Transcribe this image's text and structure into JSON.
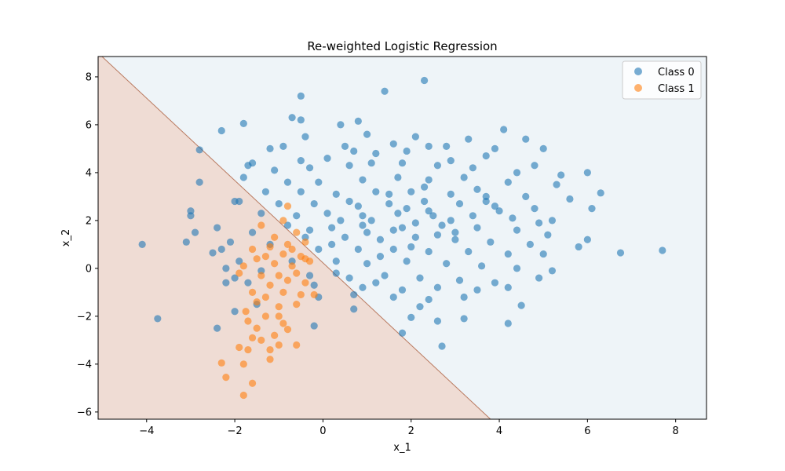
{
  "chart_data": {
    "type": "scatter",
    "title": "Re-weighted Logistic Regression",
    "xlabel": "x_1",
    "ylabel": "x_2",
    "xlim": [
      -5.1,
      8.7
    ],
    "ylim": [
      -6.3,
      8.85
    ],
    "xticks": [
      -4,
      -2,
      0,
      2,
      4,
      6,
      8
    ],
    "yticks": [
      -6,
      -4,
      -2,
      0,
      2,
      4,
      6,
      8
    ],
    "xtick_labels": [
      "−4",
      "−2",
      "0",
      "2",
      "4",
      "6",
      "8"
    ],
    "ytick_labels": [
      "−6",
      "−4",
      "−2",
      "0",
      "2",
      "4",
      "6",
      "8"
    ],
    "grid": false,
    "legend_position": "top-right",
    "decision_boundary": {
      "line": [
        [
          -5.1,
          9.0
        ],
        [
          3.8,
          -6.3
        ]
      ],
      "class0_region_color": "#eef4f8",
      "class1_region_color": "#efdcd4",
      "boundary_color": "#b97a60"
    },
    "series": [
      {
        "name": "Class 0",
        "color": "#1f77b4",
        "points": [
          [
            2.3,
            7.85
          ],
          [
            1.4,
            7.4
          ],
          [
            -0.5,
            7.2
          ],
          [
            -1.8,
            6.05
          ],
          [
            -2.3,
            5.75
          ],
          [
            -0.7,
            6.3
          ],
          [
            -0.5,
            6.2
          ],
          [
            0.8,
            6.15
          ],
          [
            0.4,
            6.0
          ],
          [
            4.1,
            5.8
          ],
          [
            -0.4,
            5.5
          ],
          [
            1.0,
            5.6
          ],
          [
            2.1,
            5.5
          ],
          [
            3.3,
            5.4
          ],
          [
            4.6,
            5.4
          ],
          [
            -1.2,
            5.0
          ],
          [
            -0.9,
            5.1
          ],
          [
            0.5,
            5.1
          ],
          [
            1.6,
            5.2
          ],
          [
            2.8,
            5.1
          ],
          [
            3.9,
            5.0
          ],
          [
            5.0,
            5.0
          ],
          [
            -1.7,
            4.3
          ],
          [
            -1.6,
            4.4
          ],
          [
            -1.1,
            4.1
          ],
          [
            -0.3,
            4.2
          ],
          [
            0.6,
            4.3
          ],
          [
            1.1,
            4.4
          ],
          [
            1.8,
            4.4
          ],
          [
            2.6,
            4.3
          ],
          [
            3.4,
            4.2
          ],
          [
            4.4,
            4.0
          ],
          [
            5.4,
            3.9
          ],
          [
            6.0,
            4.0
          ],
          [
            -1.8,
            3.8
          ],
          [
            -0.8,
            3.6
          ],
          [
            -0.1,
            3.6
          ],
          [
            0.9,
            3.7
          ],
          [
            1.7,
            3.8
          ],
          [
            2.4,
            3.7
          ],
          [
            3.2,
            3.8
          ],
          [
            4.2,
            3.6
          ],
          [
            5.3,
            3.5
          ],
          [
            6.3,
            3.15
          ],
          [
            -1.3,
            3.2
          ],
          [
            -0.5,
            3.2
          ],
          [
            0.3,
            3.1
          ],
          [
            1.2,
            3.2
          ],
          [
            2.0,
            3.2
          ],
          [
            2.9,
            3.1
          ],
          [
            3.7,
            3.0
          ],
          [
            4.6,
            3.0
          ],
          [
            5.6,
            2.9
          ],
          [
            -1.9,
            2.8
          ],
          [
            -1.0,
            2.7
          ],
          [
            -0.2,
            2.7
          ],
          [
            0.6,
            2.8
          ],
          [
            1.5,
            2.7
          ],
          [
            2.3,
            2.8
          ],
          [
            3.1,
            2.7
          ],
          [
            3.9,
            2.6
          ],
          [
            4.8,
            2.5
          ],
          [
            6.1,
            2.5
          ],
          [
            -1.4,
            2.3
          ],
          [
            -0.6,
            2.2
          ],
          [
            0.1,
            2.3
          ],
          [
            0.9,
            2.2
          ],
          [
            1.7,
            2.3
          ],
          [
            2.5,
            2.2
          ],
          [
            3.4,
            2.2
          ],
          [
            4.3,
            2.1
          ],
          [
            5.2,
            2.0
          ],
          [
            -0.8,
            1.8
          ],
          [
            0.2,
            1.7
          ],
          [
            0.9,
            1.8
          ],
          [
            1.8,
            1.7
          ],
          [
            2.7,
            1.8
          ],
          [
            3.5,
            1.7
          ],
          [
            4.4,
            1.6
          ],
          [
            5.1,
            1.4
          ],
          [
            6.0,
            1.2
          ],
          [
            -1.6,
            1.5
          ],
          [
            -0.4,
            1.3
          ],
          [
            0.5,
            1.3
          ],
          [
            1.3,
            1.2
          ],
          [
            2.1,
            1.3
          ],
          [
            3.0,
            1.2
          ],
          [
            3.8,
            1.1
          ],
          [
            4.7,
            1.0
          ],
          [
            5.8,
            0.9
          ],
          [
            -1.2,
            1.0
          ],
          [
            -0.1,
            0.8
          ],
          [
            0.8,
            0.8
          ],
          [
            1.6,
            0.8
          ],
          [
            2.4,
            0.7
          ],
          [
            3.3,
            0.7
          ],
          [
            4.2,
            0.6
          ],
          [
            5.0,
            0.6
          ],
          [
            6.75,
            0.65
          ],
          [
            7.7,
            0.75
          ],
          [
            -2.9,
            1.5
          ],
          [
            -3.1,
            1.1
          ],
          [
            -4.1,
            1.0
          ],
          [
            -2.5,
            0.65
          ],
          [
            -2.3,
            0.8
          ],
          [
            -0.7,
            0.3
          ],
          [
            0.3,
            0.3
          ],
          [
            1.0,
            0.2
          ],
          [
            1.9,
            0.3
          ],
          [
            2.8,
            0.2
          ],
          [
            3.6,
            0.1
          ],
          [
            4.4,
            0.0
          ],
          [
            5.2,
            -0.1
          ],
          [
            -2.2,
            0.0
          ],
          [
            -1.4,
            -0.1
          ],
          [
            -0.3,
            -0.3
          ],
          [
            0.6,
            -0.4
          ],
          [
            1.4,
            -0.3
          ],
          [
            2.2,
            -0.4
          ],
          [
            3.1,
            -0.5
          ],
          [
            3.9,
            -0.6
          ],
          [
            4.9,
            -0.4
          ],
          [
            -1.7,
            -0.6
          ],
          [
            -0.2,
            -0.7
          ],
          [
            0.9,
            -0.8
          ],
          [
            1.8,
            -0.9
          ],
          [
            2.6,
            -0.8
          ],
          [
            3.5,
            -0.9
          ],
          [
            4.2,
            -0.8
          ],
          [
            -0.1,
            -1.2
          ],
          [
            0.7,
            -1.1
          ],
          [
            1.6,
            -1.2
          ],
          [
            2.4,
            -1.3
          ],
          [
            3.2,
            -1.2
          ],
          [
            4.5,
            -1.55
          ],
          [
            0.7,
            -1.7
          ],
          [
            2.2,
            -1.6
          ],
          [
            -3.75,
            -2.1
          ],
          [
            -0.2,
            -2.4
          ],
          [
            2.0,
            -2.05
          ],
          [
            2.6,
            -2.2
          ],
          [
            3.2,
            -2.1
          ],
          [
            4.2,
            -2.3
          ],
          [
            1.8,
            -2.7
          ],
          [
            -2.4,
            -2.5
          ],
          [
            2.7,
            -3.25
          ],
          [
            -2.0,
            -1.8
          ],
          [
            -1.5,
            -1.5
          ],
          [
            0.3,
            -0.2
          ],
          [
            1.2,
            -0.6
          ],
          [
            2.3,
            3.4
          ],
          [
            1.9,
            2.5
          ],
          [
            2.6,
            1.4
          ],
          [
            1.1,
            2.0
          ],
          [
            1.5,
            3.1
          ],
          [
            2.9,
            2.0
          ],
          [
            0.8,
            2.6
          ],
          [
            2.1,
            1.9
          ],
          [
            1.6,
            1.6
          ],
          [
            2.4,
            2.4
          ],
          [
            1.2,
            4.8
          ],
          [
            2.9,
            4.5
          ],
          [
            0.1,
            4.6
          ],
          [
            3.7,
            4.7
          ],
          [
            1.9,
            4.9
          ],
          [
            -0.5,
            4.5
          ],
          [
            4.8,
            4.3
          ],
          [
            2.4,
            5.1
          ],
          [
            0.7,
            4.9
          ],
          [
            3.5,
            3.3
          ],
          [
            0.4,
            2.0
          ],
          [
            -0.3,
            1.6
          ],
          [
            1.0,
            1.5
          ],
          [
            2.0,
            0.9
          ],
          [
            3.0,
            1.5
          ],
          [
            4.0,
            2.4
          ],
          [
            4.9,
            1.9
          ],
          [
            1.3,
            0.5
          ],
          [
            0.2,
            1.0
          ],
          [
            3.7,
            2.8
          ],
          [
            -2.8,
            3.6
          ],
          [
            -2.8,
            4.95
          ],
          [
            -3.0,
            2.4
          ],
          [
            -3.0,
            2.2
          ],
          [
            -2.4,
            1.7
          ],
          [
            -2.0,
            2.8
          ],
          [
            -2.1,
            1.1
          ],
          [
            -1.9,
            0.3
          ],
          [
            -2.0,
            -0.4
          ],
          [
            -2.2,
            -0.6
          ]
        ]
      },
      {
        "name": "Class 1",
        "color": "#ff7f0e",
        "points": [
          [
            -1.8,
            -5.3
          ],
          [
            -1.6,
            -4.8
          ],
          [
            -2.2,
            -4.55
          ],
          [
            -2.3,
            -3.95
          ],
          [
            -1.8,
            -4.0
          ],
          [
            -1.2,
            -3.8
          ],
          [
            -1.7,
            -3.4
          ],
          [
            -1.9,
            -3.3
          ],
          [
            -1.4,
            -3.0
          ],
          [
            -1.0,
            -3.2
          ],
          [
            -0.6,
            -3.2
          ],
          [
            -1.6,
            -2.9
          ],
          [
            -1.1,
            -2.8
          ],
          [
            -0.8,
            -2.55
          ],
          [
            -1.7,
            -2.2
          ],
          [
            -1.3,
            -2.0
          ],
          [
            -0.9,
            -2.3
          ],
          [
            -1.75,
            -1.8
          ],
          [
            -1.5,
            -1.4
          ],
          [
            -1.0,
            -1.6
          ],
          [
            -0.6,
            -1.5
          ],
          [
            -1.6,
            -1.0
          ],
          [
            -1.3,
            -1.2
          ],
          [
            -0.9,
            -1.0
          ],
          [
            -0.5,
            -1.1
          ],
          [
            -0.2,
            -1.1
          ],
          [
            -1.2,
            -0.7
          ],
          [
            -0.8,
            -0.5
          ],
          [
            -0.4,
            -0.6
          ],
          [
            -1.4,
            -0.3
          ],
          [
            -1.0,
            -0.3
          ],
          [
            -0.6,
            -0.2
          ],
          [
            -1.8,
            0.1
          ],
          [
            -1.1,
            0.2
          ],
          [
            -0.7,
            0.1
          ],
          [
            -0.3,
            0.3
          ],
          [
            -1.3,
            0.5
          ],
          [
            -0.9,
            0.6
          ],
          [
            -0.5,
            0.5
          ],
          [
            -1.6,
            0.8
          ],
          [
            -1.2,
            0.9
          ],
          [
            -0.8,
            1.0
          ],
          [
            -0.4,
            1.1
          ],
          [
            -1.9,
            -0.2
          ],
          [
            -1.5,
            0.4
          ],
          [
            -0.7,
            0.8
          ],
          [
            -1.1,
            1.3
          ],
          [
            -0.6,
            1.5
          ],
          [
            -0.9,
            2.0
          ],
          [
            -1.4,
            1.8
          ],
          [
            -0.8,
            2.6
          ],
          [
            -0.4,
            0.4
          ],
          [
            -1.0,
            -2.0
          ],
          [
            -1.5,
            -2.5
          ],
          [
            -1.2,
            -3.4
          ]
        ]
      }
    ]
  }
}
